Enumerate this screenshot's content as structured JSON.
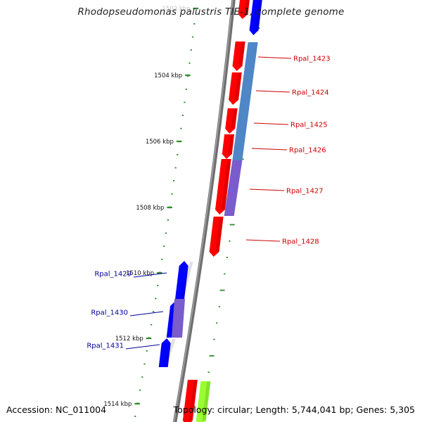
{
  "title": "Rhodopseudomonas palustris TIE-1, complete genome",
  "footer": {
    "accession": "Accession: NC_011004",
    "summary": "Topology: circular; Length: 5,744,041 bp; Genes: 5,305"
  },
  "colors": {
    "forward_gene": "#ff0000",
    "reverse_gene": "#0000ff",
    "label_forward": "#cc0000",
    "label_reverse": "#000099",
    "backbone": "#808080",
    "tick": "#2e8b2e",
    "rna_slot_blue": "#4f86c6",
    "rna_slot_purple": "#7a5ccc",
    "other_green": "#99ff33"
  },
  "ticks": [
    {
      "label": "1502 kbp"
    },
    {
      "label": "1504 kbp"
    },
    {
      "label": "1506 kbp"
    },
    {
      "label": "1508 kbp"
    },
    {
      "label": "1510 kbp"
    },
    {
      "label": "1512 kbp"
    },
    {
      "label": "1514 kbp"
    }
  ],
  "genes": [
    {
      "label": "Rpal_1423",
      "strand": "forward"
    },
    {
      "label": "Rpal_1424",
      "strand": "forward"
    },
    {
      "label": "Rpal_1425",
      "strand": "forward"
    },
    {
      "label": "Rpal_1426",
      "strand": "forward"
    },
    {
      "label": "Rpal_1427",
      "strand": "forward"
    },
    {
      "label": "Rpal_1428",
      "strand": "forward"
    },
    {
      "label": "Rpal_1429",
      "strand": "reverse"
    },
    {
      "label": "Rpal_1430",
      "strand": "reverse"
    },
    {
      "label": "Rpal_1431",
      "strand": "reverse"
    }
  ]
}
